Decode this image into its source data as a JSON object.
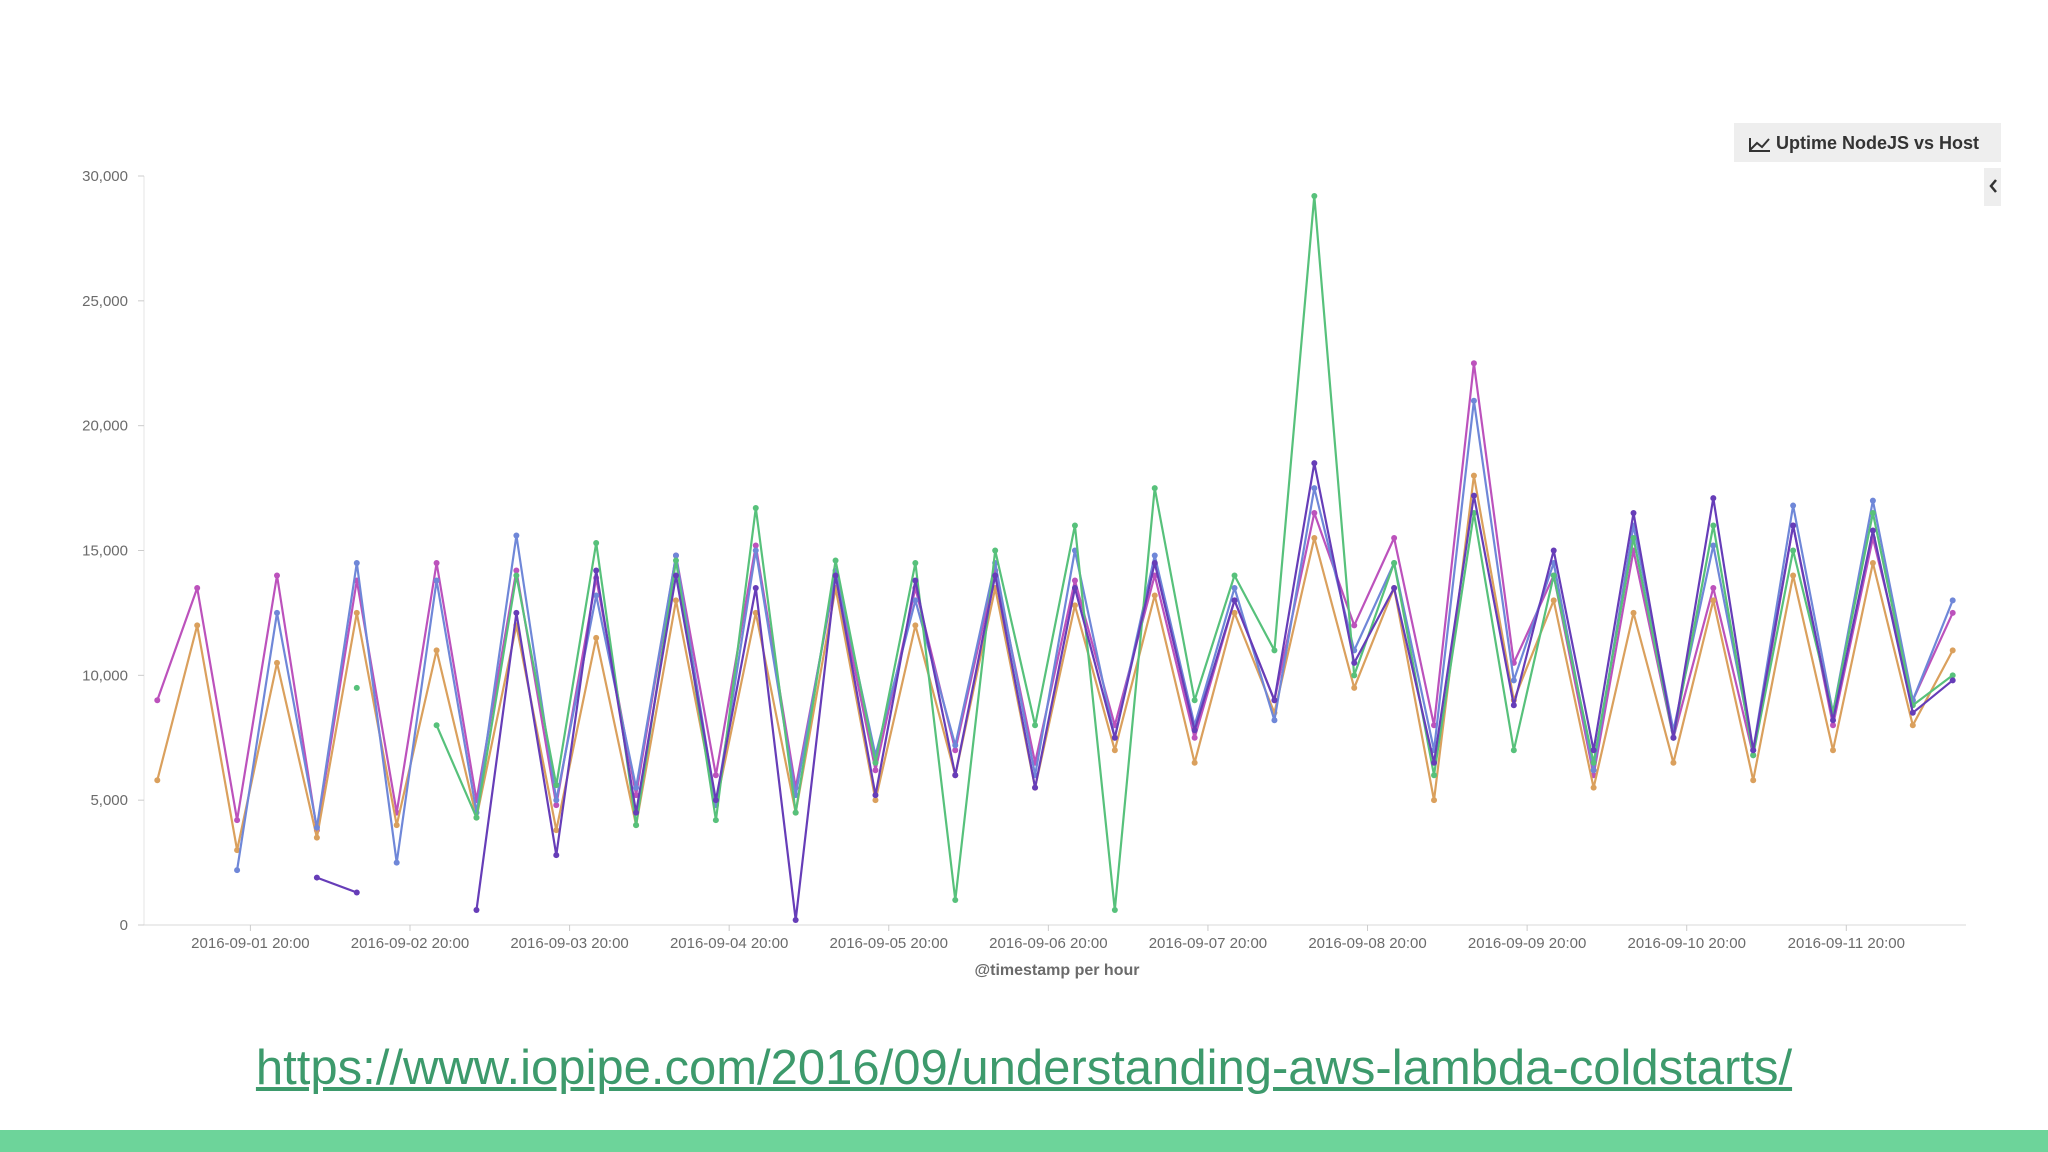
{
  "chart_data": {
    "type": "line",
    "title": "Uptime NodeJS vs Host",
    "x_label": "@timestamp per hour",
    "xlim": [
      "2016-09-01 04:00",
      "2016-09-12 14:00"
    ],
    "xticks": [
      "2016-09-01 20:00",
      "2016-09-02 20:00",
      "2016-09-03 20:00",
      "2016-09-04 20:00",
      "2016-09-05 20:00",
      "2016-09-06 20:00",
      "2016-09-07 20:00",
      "2016-09-08 20:00",
      "2016-09-09 20:00",
      "2016-09-10 20:00",
      "2016-09-11 20:00"
    ],
    "ylim": [
      0,
      30000
    ],
    "yticks": [
      0,
      {
        "value": 5000,
        "label": "5,000"
      },
      {
        "value": 10000,
        "label": "10,000"
      },
      {
        "value": 15000,
        "label": "15,000"
      },
      {
        "value": 20000,
        "label": "20,000"
      },
      {
        "value": 25000,
        "label": "25,000"
      },
      {
        "value": 30000,
        "label": "30,000"
      }
    ],
    "x": [
      "2016-09-01 06:00",
      "2016-09-01 12:00",
      "2016-09-01 18:00",
      "2016-09-02 00:00",
      "2016-09-02 06:00",
      "2016-09-02 12:00",
      "2016-09-02 18:00",
      "2016-09-03 00:00",
      "2016-09-03 06:00",
      "2016-09-03 12:00",
      "2016-09-03 18:00",
      "2016-09-04 00:00",
      "2016-09-04 06:00",
      "2016-09-04 12:00",
      "2016-09-04 18:00",
      "2016-09-05 00:00",
      "2016-09-05 06:00",
      "2016-09-05 12:00",
      "2016-09-05 18:00",
      "2016-09-06 00:00",
      "2016-09-06 06:00",
      "2016-09-06 12:00",
      "2016-09-06 18:00",
      "2016-09-07 00:00",
      "2016-09-07 06:00",
      "2016-09-07 12:00",
      "2016-09-07 18:00",
      "2016-09-08 00:00",
      "2016-09-08 06:00",
      "2016-09-08 12:00",
      "2016-09-08 18:00",
      "2016-09-09 00:00",
      "2016-09-09 06:00",
      "2016-09-09 12:00",
      "2016-09-09 18:00",
      "2016-09-10 00:00",
      "2016-09-10 06:00",
      "2016-09-10 12:00",
      "2016-09-10 18:00",
      "2016-09-11 00:00",
      "2016-09-11 06:00",
      "2016-09-11 12:00",
      "2016-09-11 18:00",
      "2016-09-12 00:00",
      "2016-09-12 06:00",
      "2016-09-12 12:00"
    ],
    "series": [
      {
        "color": "#bc52bc",
        "values": [
          9000,
          13500,
          4200,
          14000,
          3800,
          13800,
          4500,
          14500,
          5000,
          14200,
          4800,
          13900,
          5200,
          14800,
          6000,
          15200,
          5500,
          14000,
          6200,
          13500,
          7000,
          14200,
          6500,
          13800,
          8000,
          14000,
          7500,
          13000,
          9000,
          16500,
          12000,
          15500,
          8000,
          22500,
          10500,
          14000,
          6000,
          15000,
          7500,
          13500,
          6800,
          16000,
          8000,
          15500,
          9000,
          12500
        ]
      },
      {
        "color": "#daa05d",
        "values": [
          5800,
          12000,
          3000,
          10500,
          3500,
          12500,
          4000,
          11000,
          4300,
          12000,
          3800,
          11500,
          4000,
          13000,
          4800,
          12500,
          4500,
          13500,
          5000,
          12000,
          6000,
          13500,
          5500,
          12800,
          7000,
          13200,
          6500,
          12500,
          8500,
          15500,
          9500,
          13500,
          5000,
          18000,
          9000,
          13000,
          5500,
          12500,
          6500,
          13000,
          5800,
          14000,
          7000,
          14500,
          8000,
          11000
        ]
      },
      {
        "color": "#6f87d8",
        "values": [
          null,
          null,
          2200,
          12500,
          3900,
          14500,
          2500,
          13800,
          4500,
          15600,
          5000,
          13200,
          5500,
          14800,
          4800,
          15000,
          5200,
          14200,
          6800,
          13000,
          7200,
          14500,
          6000,
          15000,
          7500,
          14800,
          8000,
          13500,
          8200,
          17500,
          11000,
          14500,
          7000,
          21000,
          9800,
          14500,
          6200,
          16000,
          7800,
          15200,
          7000,
          16800,
          8500,
          17000,
          9000,
          13000
        ]
      },
      {
        "color": "#57c17b",
        "values": [
          null,
          null,
          null,
          null,
          null,
          9500,
          null,
          8000,
          4300,
          14000,
          5600,
          15300,
          4000,
          14600,
          4200,
          16700,
          4500,
          14600,
          6500,
          14500,
          1000,
          15000,
          8000,
          16000,
          600,
          17500,
          9000,
          14000,
          11000,
          29200,
          10000,
          14500,
          6000,
          16500,
          7000,
          14000,
          6500,
          15500,
          7500,
          16000,
          6800,
          15000,
          8500,
          16500,
          8800,
          10000
        ]
      },
      {
        "color": "#663db8",
        "values": [
          null,
          null,
          null,
          null,
          1900,
          1300,
          null,
          null,
          600,
          12500,
          2800,
          14200,
          4500,
          14000,
          5000,
          13500,
          200,
          14000,
          5200,
          13800,
          6000,
          14000,
          5500,
          13500,
          7500,
          14500,
          7800,
          13000,
          9000,
          18500,
          10500,
          13500,
          6500,
          17200,
          8800,
          15000,
          7000,
          16500,
          7500,
          17100,
          7000,
          16000,
          8200,
          15800,
          8500,
          9800
        ]
      }
    ],
    "source_link": "https://www.iopipe.com/2016/09/understanding-aws-lambda-coldstarts/"
  }
}
